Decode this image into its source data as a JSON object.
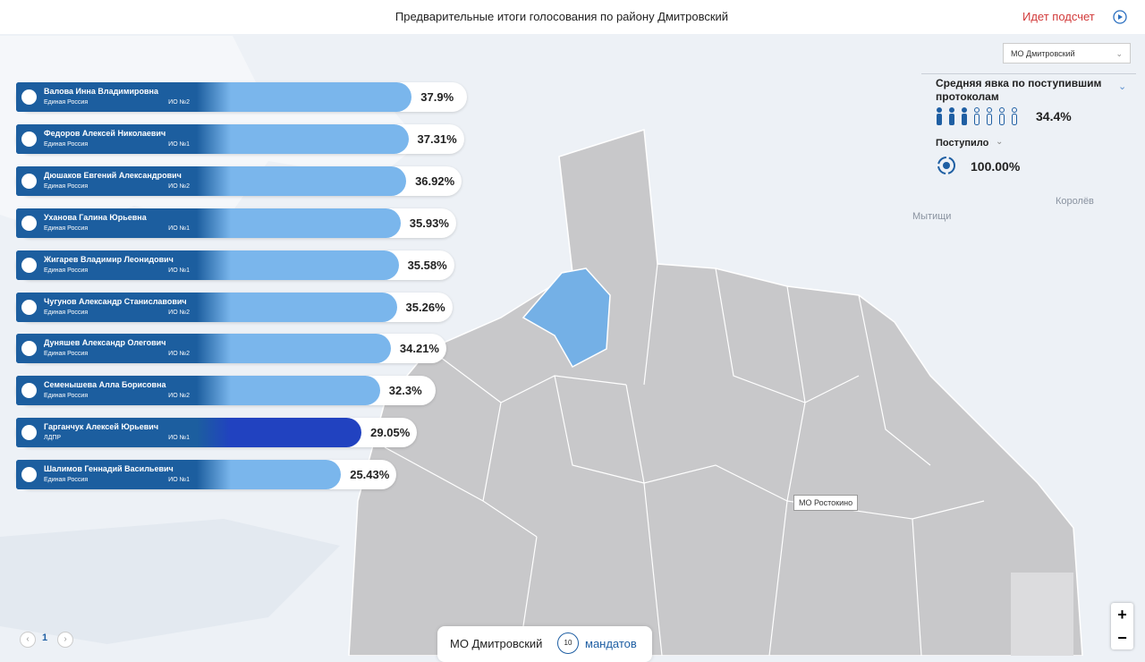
{
  "header": {
    "title": "Предварительные итоги голосования по району Дмитровский",
    "status": "Идет подсчет"
  },
  "district_select": "МО Дмитровский",
  "turnout": {
    "label": "Средняя явка по поступившим протоколам",
    "value": "34.4%"
  },
  "received": {
    "label": "Поступило",
    "value": "100.00%"
  },
  "candidates": [
    {
      "name": "Валова Инна Владимировна",
      "party": "Единая Россия",
      "district": "ИО №2",
      "percent": 37.9,
      "percent_label": "37.9%",
      "color": "#7ab6ec"
    },
    {
      "name": "Федоров Алексей Николаевич",
      "party": "Единая Россия",
      "district": "ИО №1",
      "percent": 37.31,
      "percent_label": "37.31%",
      "color": "#7ab6ec"
    },
    {
      "name": "Дюшаков Евгений Александрович",
      "party": "Единая Россия",
      "district": "ИО №2",
      "percent": 36.92,
      "percent_label": "36.92%",
      "color": "#7ab6ec"
    },
    {
      "name": "Уханова Галина Юрьевна",
      "party": "Единая Россия",
      "district": "ИО №1",
      "percent": 35.93,
      "percent_label": "35.93%",
      "color": "#7ab6ec"
    },
    {
      "name": "Жигарев Владимир Леонидович",
      "party": "Единая Россия",
      "district": "ИО №1",
      "percent": 35.58,
      "percent_label": "35.58%",
      "color": "#7ab6ec"
    },
    {
      "name": "Чугунов Александр Станиславович",
      "party": "Единая Россия",
      "district": "ИО №2",
      "percent": 35.26,
      "percent_label": "35.26%",
      "color": "#7ab6ec"
    },
    {
      "name": "Дуняшев Александр Олегович",
      "party": "Единая Россия",
      "district": "ИО №2",
      "percent": 34.21,
      "percent_label": "34.21%",
      "color": "#7ab6ec"
    },
    {
      "name": "Семенышева Алла Борисовна",
      "party": "Единая Россия",
      "district": "ИО №2",
      "percent": 32.3,
      "percent_label": "32.3%",
      "color": "#7ab6ec"
    },
    {
      "name": "Гарганчук Алексей Юрьевич",
      "party": "ЛДПР",
      "district": "ИО №1",
      "percent": 29.05,
      "percent_label": "29.05%",
      "color": "#2142c0"
    },
    {
      "name": "Шалимов Геннадий Васильевич",
      "party": "Единая Россия",
      "district": "ИО №1",
      "percent": 25.43,
      "percent_label": "25.43%",
      "color": "#7ab6ec"
    }
  ],
  "map": {
    "labels": [
      "МО Ростокино",
      "Мытищи",
      "Королёв"
    ]
  },
  "footer": {
    "district": "МО Дмитровский",
    "mandates": "10",
    "mandates_label": "мандатов"
  },
  "pagination": {
    "page": "1"
  }
}
